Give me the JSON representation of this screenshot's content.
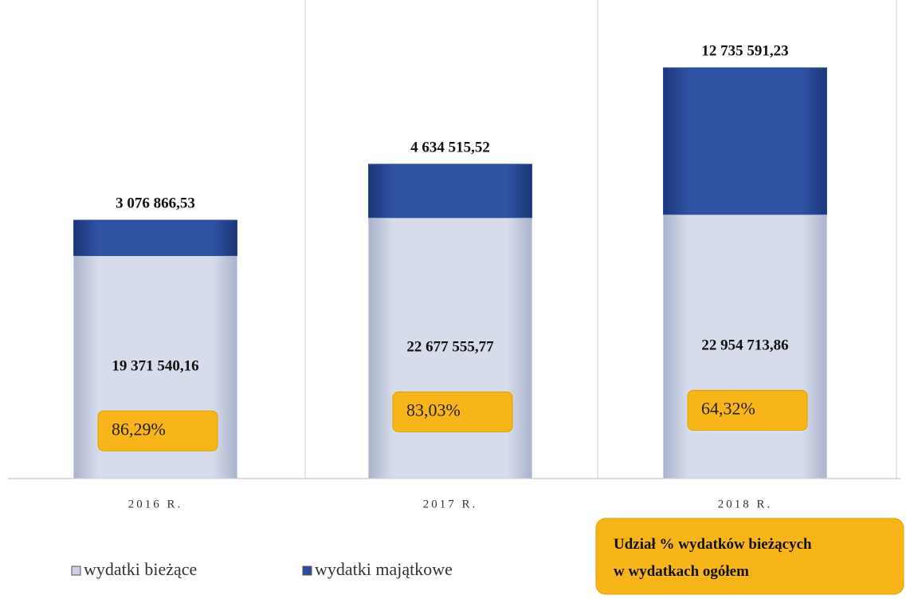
{
  "chart_data": {
    "type": "bar",
    "stacked": true,
    "categories": [
      "2016 R.",
      "2017 R.",
      "2018 R."
    ],
    "series": [
      {
        "name": "wydatki bieżące",
        "color": "#c9d0e2",
        "values": [
          19371540.16,
          22677555.77,
          22954713.86
        ],
        "value_labels": [
          "19 371 540,16",
          "22 677 555,77",
          "22 954 713,86"
        ]
      },
      {
        "name": "wydatki majątkowe",
        "color": "#2b4c9b",
        "values": [
          3076866.53,
          4634515.52,
          12735591.23
        ],
        "value_labels": [
          "3 076 866,53",
          "4 634 515,52",
          "12 735 591,23"
        ]
      }
    ],
    "shares": {
      "title": "Udział % wydatków bieżących w wydatkach ogółem",
      "values": [
        86.29,
        83.03,
        64.32
      ],
      "value_labels": [
        "86,29%",
        "83,03%",
        "64,32%"
      ],
      "color": "#f7b519"
    }
  }
}
